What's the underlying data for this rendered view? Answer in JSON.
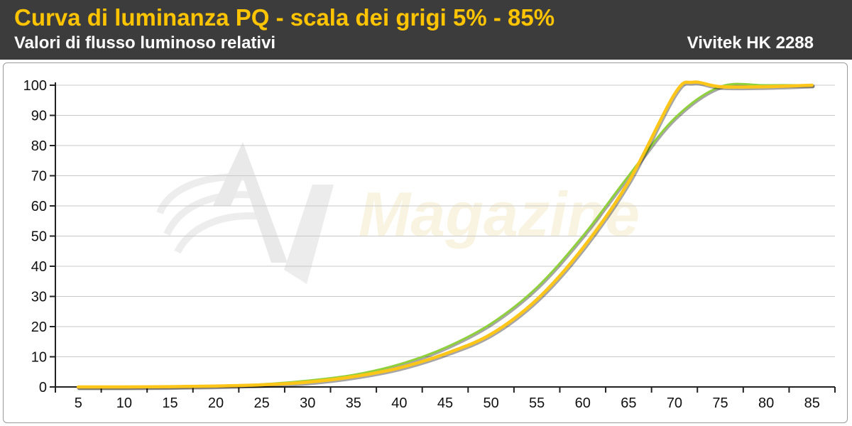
{
  "header": {
    "title": "Curva di luminanza PQ - scala dei grigi 5% - 85%",
    "subtitle": "Valori di flusso luminoso relativi",
    "model": "Vivitek HK 2288"
  },
  "watermark": {
    "text": "Magazine"
  },
  "colors": {
    "header_bg": "#3c3c3c",
    "title": "#ffc400",
    "reference_curve": "#8fd13a",
    "measured_curve": "#ffc61a",
    "grid": "#c8c8c8"
  },
  "chart_data": {
    "type": "line",
    "title": "Curva di luminanza PQ - scala dei grigi 5% - 85%",
    "subtitle": "Valori di flusso luminoso relativi",
    "xlabel": "",
    "ylabel": "",
    "x_ticks": [
      "5",
      "10",
      "15",
      "20",
      "25",
      "30",
      "35",
      "40",
      "45",
      "50",
      "55",
      "60",
      "65",
      "70",
      "75",
      "80",
      "85"
    ],
    "y_ticks": [
      "0",
      "10",
      "20",
      "30",
      "40",
      "50",
      "60",
      "70",
      "80",
      "90",
      "100"
    ],
    "xlim": [
      5,
      85
    ],
    "ylim": [
      0,
      100
    ],
    "grid": "horizontal",
    "legend": "none",
    "series": [
      {
        "color": "#8fd13a",
        "x": [
          5,
          10,
          15,
          20,
          25,
          30,
          35,
          40,
          45,
          50,
          55,
          60,
          65,
          70,
          75,
          80,
          85
        ],
        "y": [
          0,
          0,
          0.1,
          0.4,
          0.9,
          2.1,
          4,
          7.5,
          13,
          21,
          33,
          50,
          70,
          89,
          99.5,
          100,
          100
        ]
      },
      {
        "color": "#ffc61a",
        "x": [
          5,
          10,
          15,
          20,
          25,
          30,
          35,
          40,
          45,
          50,
          55,
          60,
          65,
          70,
          72,
          75,
          80,
          85
        ],
        "y": [
          0,
          0,
          0.1,
          0.3,
          0.7,
          1.6,
          3.4,
          6.3,
          11,
          17.5,
          29,
          46,
          68,
          97,
          101,
          99.5,
          99.5,
          100
        ]
      }
    ]
  }
}
